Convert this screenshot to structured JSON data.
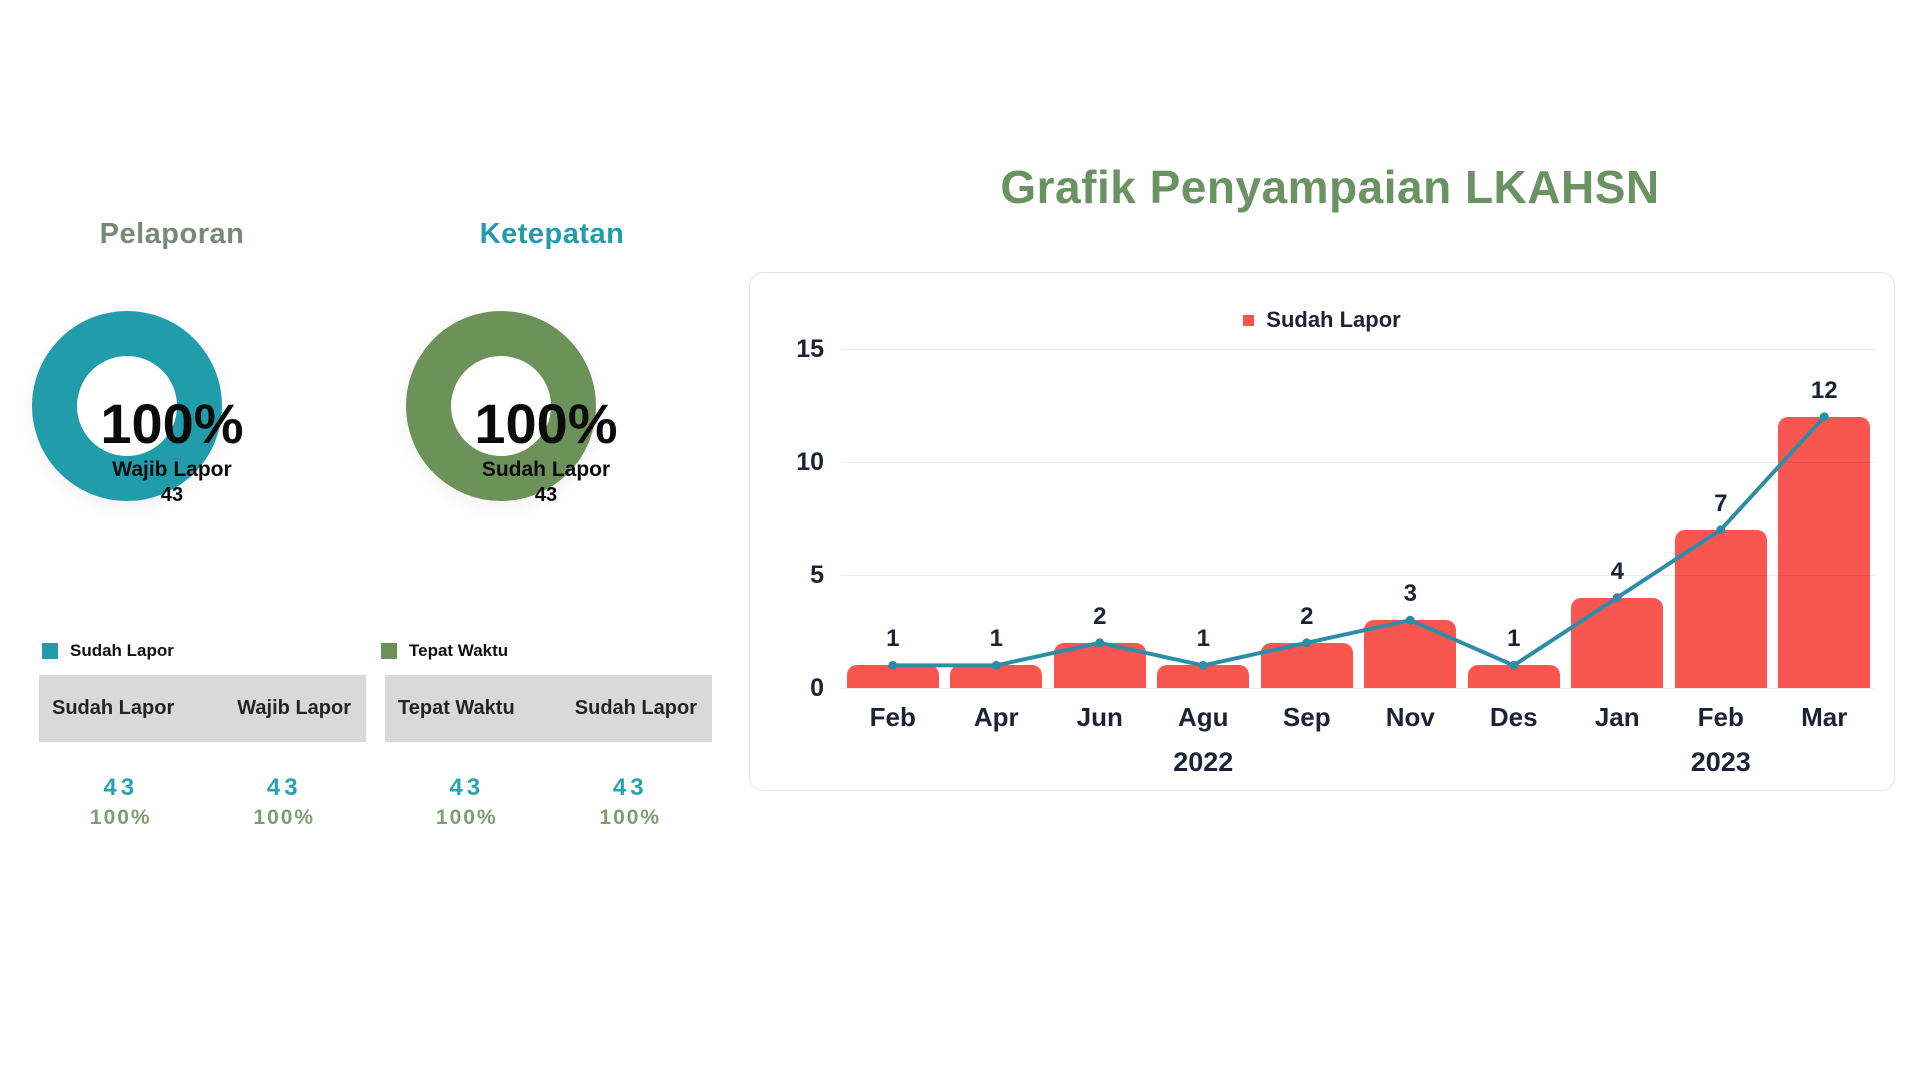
{
  "theme": {
    "teal": "#219CAB",
    "green": "#6C9159",
    "title-green": "#6B9262",
    "muted-title": "#77897B",
    "value-teal": "#29A3B4",
    "value-green": "#7F9D72",
    "red": "#F9564F",
    "line": "#2E8DA6",
    "dark": "#1D2235",
    "grid": "#ECECEC",
    "thead": "#D9D9D9",
    "card-border": "#E3E3E3"
  },
  "pelaporan": {
    "title": "Pelaporan",
    "donut": {
      "percent": "100%",
      "label": "Wajib Lapor",
      "value": "43",
      "color": "#219CAB"
    },
    "legend": {
      "label": "Sudah Lapor",
      "color": "#219CAB"
    },
    "table": {
      "headers": [
        "Sudah Lapor",
        "Wajib Lapor"
      ],
      "columns": [
        {
          "value": "43",
          "percent": "100%"
        },
        {
          "value": "43",
          "percent": "100%"
        }
      ]
    }
  },
  "ketepatan": {
    "title": "Ketepatan",
    "donut": {
      "percent": "100%",
      "label": "Sudah Lapor",
      "value": "43",
      "color": "#6C9159"
    },
    "legend": {
      "label": "Tepat Waktu",
      "color": "#6C9159"
    },
    "table": {
      "headers": [
        "Tepat Waktu",
        "Sudah Lapor"
      ],
      "columns": [
        {
          "value": "43",
          "percent": "100%"
        },
        {
          "value": "43",
          "percent": "100%"
        }
      ]
    }
  },
  "chart": {
    "title": "Grafik Penyampaian LKAHSN",
    "legend_label": "Sudah Lapor"
  },
  "chart_data": {
    "type": "bar",
    "line_overlay": true,
    "title": "Grafik Penyampaian LKAHSN",
    "legend_entries": [
      "Sudah Lapor"
    ],
    "legend_position": "top",
    "categories": [
      "Feb",
      "Apr",
      "Jun",
      "Agu",
      "Sep",
      "Nov",
      "Des",
      "Jan",
      "Feb",
      "Mar"
    ],
    "values": [
      1,
      1,
      2,
      1,
      2,
      3,
      1,
      4,
      7,
      12
    ],
    "data_labels": [
      "1",
      "1",
      "2",
      "1",
      "2",
      "3",
      "1",
      "4",
      "7",
      "12"
    ],
    "year_groups": [
      {
        "label": "2022",
        "count": 7
      },
      {
        "label": "2023",
        "count": 3
      }
    ],
    "xlabel": "",
    "ylabel": "",
    "ylim": [
      0,
      15
    ],
    "yticks": [
      0,
      5,
      10,
      15
    ],
    "grid": true,
    "bar_color": "#F9564F",
    "line_color": "#2E8DA6"
  }
}
